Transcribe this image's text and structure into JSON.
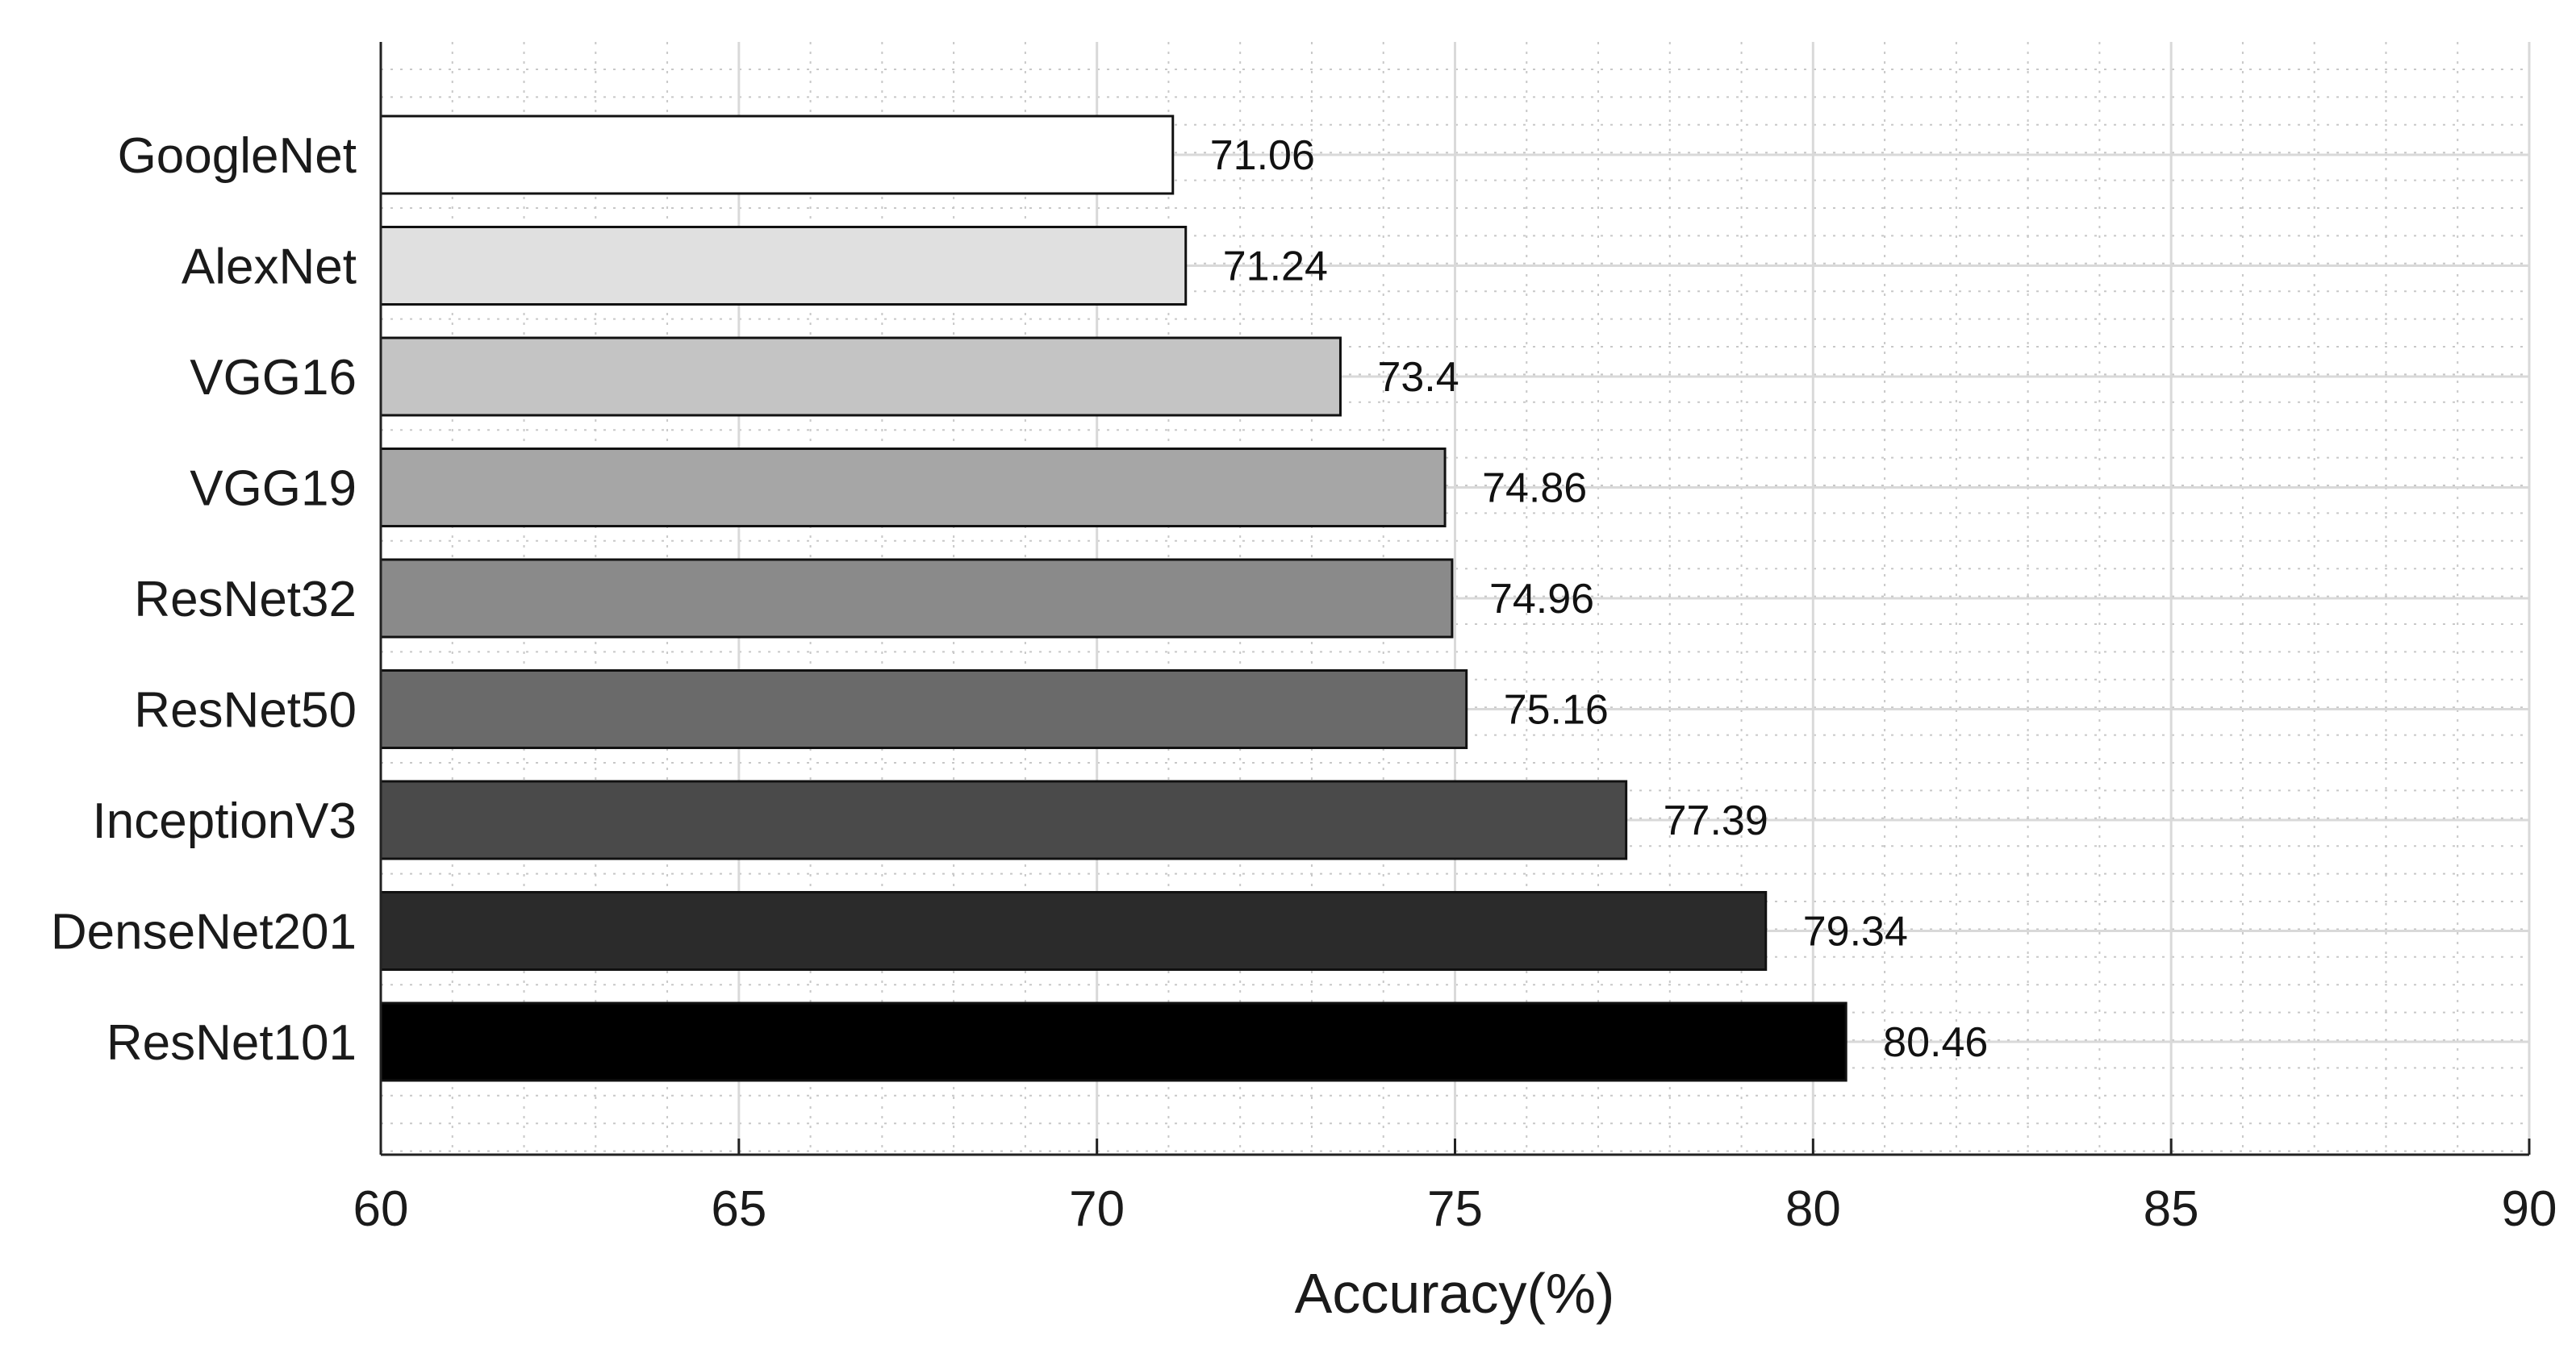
{
  "chart_data": {
    "type": "bar",
    "orientation": "horizontal",
    "categories": [
      "GoogleNet",
      "AlexNet",
      "VGG16",
      "VGG19",
      "ResNet32",
      "ResNet50",
      "InceptionV3",
      "DenseNet201",
      "ResNet101"
    ],
    "values": [
      71.06,
      71.24,
      73.4,
      74.86,
      74.96,
      75.16,
      77.39,
      79.34,
      80.46
    ],
    "value_labels": [
      "71.06",
      "71.24",
      "73.4",
      "74.86",
      "74.96",
      "75.16",
      "77.39",
      "79.34",
      "80.46"
    ],
    "bar_colors": [
      "#ffffff",
      "#e0e0e0",
      "#c4c4c4",
      "#a6a6a6",
      "#8a8a8a",
      "#6a6a6a",
      "#4a4a4a",
      "#2b2b2b",
      "#000000"
    ],
    "xlabel": "Accuracy(%)",
    "ylabel": "",
    "xlim": [
      60,
      90
    ],
    "xticks": [
      60,
      65,
      70,
      75,
      80,
      85,
      90
    ],
    "xtick_labels": [
      "60",
      "65",
      "70",
      "75",
      "80",
      "85",
      "90"
    ],
    "grid": true,
    "minor_grid": true
  }
}
